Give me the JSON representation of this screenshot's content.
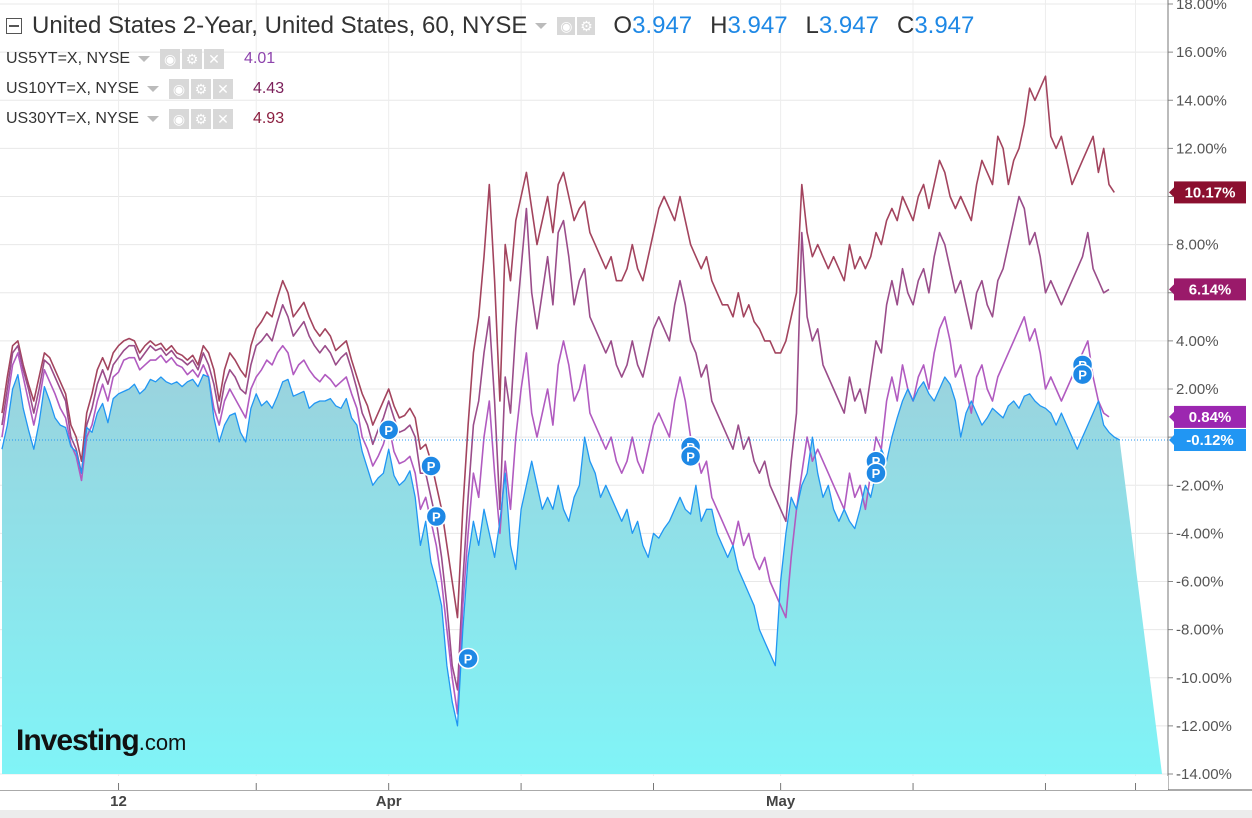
{
  "header": {
    "title": "United States 2-Year, United States, 60, NYSE",
    "ohlc": [
      {
        "label": "O",
        "value": "3.947"
      },
      {
        "label": "H",
        "value": "3.947"
      },
      {
        "label": "L",
        "value": "3.947"
      },
      {
        "label": "C",
        "value": "3.947"
      }
    ]
  },
  "comparisons": [
    {
      "symbol": "US5YT=X, NYSE",
      "value": "4.01",
      "color": "#8e44ad"
    },
    {
      "symbol": "US10YT=X, NYSE",
      "value": "4.43",
      "color": "#7b1f5a"
    },
    {
      "symbol": "US30YT=X, NYSE",
      "value": "4.93",
      "color": "#8b1e3f"
    }
  ],
  "watermark": {
    "brand": "Investing",
    "suffix": ".com"
  },
  "colors": {
    "main_line": "#2196f3",
    "area_top": "#9ad3de",
    "area_bottom": "#80f4f7",
    "us5": "#b15bc0",
    "us10": "#9a4d8a",
    "us30": "#a3445e",
    "badge_blue": "#1e88e5"
  },
  "chart_data": {
    "type": "line",
    "y_axis": {
      "ticks": [
        "18.00%",
        "16.00%",
        "14.00%",
        "12.00%",
        "10.00%",
        "8.00%",
        "6.00%",
        "4.00%",
        "2.00%",
        "0.00%",
        "-2.00%",
        "-4.00%",
        "-6.00%",
        "-8.00%",
        "-10.00%",
        "-12.00%",
        "-14.00%"
      ],
      "ylim": [
        -14,
        18
      ],
      "unit": "%"
    },
    "x_axis": {
      "labels": [
        "12",
        "Apr",
        "May"
      ],
      "label_x_index": [
        22,
        73,
        147
      ],
      "points": 220
    },
    "series": [
      {
        "name": "United States 2-Year",
        "color": "#2196f3",
        "last_label": "-0.12%",
        "y": [
          -0.5,
          0.5,
          2.0,
          2.6,
          1.2,
          0.3,
          -0.5,
          0.6,
          2.1,
          1.5,
          0.8,
          0.5,
          0.4,
          -0.4,
          -0.6,
          -1.5,
          0.4,
          0.2,
          1.0,
          1.4,
          0.6,
          1.6,
          1.8,
          1.9,
          2.0,
          2.2,
          1.8,
          2.0,
          2.4,
          2.3,
          2.5,
          2.3,
          2.2,
          2.3,
          2.1,
          2.3,
          2.4,
          2.1,
          2.6,
          2.5,
          0.8,
          -0.2,
          0.5,
          0.9,
          1.0,
          0.2,
          -0.2,
          1.2,
          1.8,
          1.3,
          1.5,
          1.2,
          1.7,
          2.3,
          2.4,
          1.7,
          1.8,
          1.9,
          1.2,
          1.4,
          1.5,
          1.5,
          1.6,
          1.3,
          1.2,
          1.6,
          0.8,
          0.5,
          -0.6,
          -1.3,
          -2.0,
          -1.7,
          -1.5,
          -0.5,
          -1.6,
          -2.0,
          -1.8,
          -1.4,
          -2.5,
          -4.5,
          -3.5,
          -5.2,
          -6.0,
          -7.0,
          -9.5,
          -11.0,
          -12.0,
          -8.0,
          -5.0,
          -3.5,
          -4.5,
          -3.0,
          -4.0,
          -5.0,
          -3.5,
          -1.5,
          -4.5,
          -5.5,
          -3.0,
          -2.0,
          -1.0,
          -2.0,
          -3.0,
          -2.5,
          -3.0,
          -2.0,
          -3.0,
          -3.5,
          -2.5,
          -2.0,
          0.0,
          -1.0,
          -1.5,
          -2.5,
          -2.0,
          -2.5,
          -3.0,
          -3.5,
          -3.0,
          -4.0,
          -3.5,
          -4.5,
          -5.0,
          -4.0,
          -4.2,
          -3.8,
          -3.5,
          -3.0,
          -2.5,
          -3.0,
          -3.2,
          -2.0,
          -3.5,
          -3.0,
          -3.0,
          -4.0,
          -4.5,
          -5.0,
          -4.5,
          -5.5,
          -6.0,
          -6.5,
          -7.0,
          -8.0,
          -8.5,
          -9.0,
          -9.5,
          -6.0,
          -4.0,
          -2.5,
          -3.0,
          -2.0,
          -1.5,
          0.0,
          -1.5,
          -2.5,
          -2.0,
          -3.0,
          -3.5,
          -3.0,
          -3.5,
          -3.8,
          -3.0,
          -2.0,
          -2.5,
          -1.5,
          -0.5,
          -1.0,
          0.0,
          0.8,
          1.5,
          2.0,
          1.5,
          2.0,
          2.3,
          1.8,
          1.5,
          2.0,
          2.5,
          2.2,
          1.5,
          0.0,
          1.0,
          1.5,
          1.0,
          0.5,
          0.8,
          1.2,
          1.0,
          0.8,
          1.3,
          1.5,
          1.2,
          1.7,
          1.8,
          1.5,
          1.3,
          1.2,
          1.0,
          0.5,
          1.0,
          0.5,
          0.0,
          -0.5,
          0.0,
          0.5,
          1.0,
          1.5,
          0.5,
          0.2,
          0.0,
          -0.12
        ]
      },
      {
        "name": "US5YT=X",
        "color": "#b15bc0",
        "last_label": "0.84%",
        "y": [
          0.0,
          1.5,
          3.0,
          3.5,
          2.5,
          1.5,
          0.5,
          1.5,
          2.8,
          2.3,
          1.8,
          1.2,
          0.8,
          -0.3,
          -0.8,
          -1.8,
          0.0,
          0.5,
          1.5,
          2.2,
          1.5,
          2.5,
          2.7,
          3.2,
          3.3,
          3.3,
          2.8,
          3.0,
          3.2,
          3.2,
          3.4,
          3.1,
          3.3,
          3.0,
          2.9,
          2.6,
          2.8,
          2.5,
          3.0,
          2.5,
          1.2,
          0.5,
          1.5,
          2.0,
          1.6,
          1.2,
          0.8,
          2.0,
          2.5,
          2.8,
          3.2,
          3.0,
          3.5,
          3.8,
          3.5,
          2.6,
          3.0,
          3.2,
          2.8,
          2.5,
          2.3,
          2.6,
          2.4,
          2.1,
          2.3,
          2.5,
          1.8,
          1.2,
          0.0,
          -0.5,
          -1.2,
          -0.8,
          -0.3,
          0.5,
          -0.6,
          -1.1,
          -1.0,
          -0.8,
          -1.5,
          -3.0,
          -2.5,
          -3.5,
          -4.5,
          -6.0,
          -8.0,
          -10.0,
          -11.5,
          -7.0,
          -4.0,
          -1.5,
          -2.5,
          0.0,
          1.5,
          -1.5,
          -4.0,
          -1.0,
          -3.0,
          0.0,
          2.0,
          3.5,
          1.0,
          0.0,
          1.0,
          2.0,
          0.5,
          3.0,
          4.0,
          3.0,
          1.5,
          2.0,
          3.0,
          1.0,
          0.5,
          0.0,
          -0.5,
          0.0,
          -1.0,
          -1.5,
          -1.0,
          0.0,
          -1.0,
          -1.5,
          -0.5,
          0.5,
          1.0,
          0.5,
          0.0,
          1.5,
          2.5,
          1.5,
          0.0,
          -0.5,
          -1.5,
          -1.0,
          -2.5,
          -3.0,
          -3.5,
          -4.0,
          -4.5,
          -3.5,
          -4.5,
          -4.0,
          -5.0,
          -5.5,
          -5.0,
          -6.0,
          -6.5,
          -7.0,
          -7.5,
          -5.0,
          -3.0,
          -1.5,
          0.0,
          -1.0,
          -0.5,
          -1.0,
          -1.5,
          -2.0,
          -2.5,
          -3.0,
          -1.5,
          -2.5,
          -2.0,
          -3.0,
          -1.5,
          0.0,
          -0.5,
          1.5,
          2.5,
          1.5,
          3.0,
          2.0,
          1.5,
          2.5,
          3.0,
          2.0,
          3.5,
          4.5,
          5.0,
          4.0,
          2.5,
          3.0,
          2.0,
          1.0,
          2.5,
          3.0,
          2.0,
          1.5,
          2.5,
          3.0,
          3.5,
          4.0,
          4.5,
          5.0,
          4.0,
          4.5,
          3.5,
          2.0,
          2.5,
          2.0,
          1.5,
          2.0,
          2.5,
          3.0,
          3.5,
          4.0,
          2.5,
          1.5,
          1.0,
          0.84
        ]
      },
      {
        "name": "US10YT=X",
        "color": "#9a4d8a",
        "last_label": "6.14%",
        "y": [
          0.5,
          2.0,
          3.5,
          3.8,
          2.8,
          2.0,
          1.0,
          2.0,
          3.2,
          3.0,
          2.5,
          2.0,
          1.5,
          0.0,
          -0.5,
          -1.5,
          0.5,
          1.2,
          2.2,
          2.8,
          2.2,
          3.0,
          3.3,
          3.6,
          3.8,
          3.8,
          3.2,
          3.5,
          3.8,
          3.6,
          3.7,
          3.4,
          3.6,
          3.3,
          3.2,
          3.0,
          3.2,
          2.8,
          3.5,
          3.0,
          2.2,
          1.0,
          2.2,
          2.8,
          2.5,
          2.0,
          1.8,
          3.0,
          3.8,
          4.0,
          4.3,
          4.0,
          4.8,
          5.5,
          5.0,
          4.2,
          4.5,
          4.8,
          4.2,
          3.8,
          3.5,
          3.8,
          3.5,
          3.0,
          3.3,
          3.5,
          2.8,
          2.0,
          1.0,
          0.5,
          -0.3,
          0.3,
          0.8,
          1.5,
          0.8,
          0.2,
          0.3,
          0.5,
          0.0,
          -1.5,
          -1.5,
          -2.5,
          -3.5,
          -5.0,
          -7.0,
          -9.5,
          -10.5,
          -6.0,
          -2.5,
          0.5,
          1.5,
          3.5,
          5.0,
          1.5,
          -3.0,
          2.5,
          1.0,
          4.5,
          7.0,
          9.5,
          6.0,
          4.5,
          6.0,
          7.5,
          5.5,
          8.5,
          9.0,
          7.5,
          5.5,
          6.5,
          7.0,
          5.0,
          4.5,
          4.0,
          3.5,
          4.0,
          3.0,
          2.5,
          3.0,
          4.0,
          3.0,
          2.5,
          3.5,
          4.5,
          5.0,
          4.5,
          4.0,
          5.5,
          6.5,
          5.5,
          4.0,
          3.5,
          2.5,
          3.0,
          1.5,
          1.0,
          0.5,
          0.0,
          -0.5,
          0.5,
          -0.5,
          0.0,
          -1.0,
          -1.5,
          -1.0,
          -2.0,
          -2.5,
          -3.0,
          -3.5,
          -1.0,
          1.0,
          8.5,
          5.0,
          4.0,
          4.5,
          3.0,
          2.5,
          2.0,
          1.5,
          1.0,
          2.5,
          1.5,
          2.0,
          1.0,
          2.5,
          4.0,
          3.5,
          5.5,
          6.5,
          5.5,
          7.0,
          6.0,
          5.5,
          6.5,
          7.0,
          6.0,
          7.5,
          8.5,
          8.0,
          7.0,
          6.0,
          6.5,
          5.5,
          4.5,
          6.0,
          6.5,
          5.5,
          5.0,
          6.5,
          7.0,
          8.0,
          9.0,
          10.0,
          9.5,
          8.0,
          8.5,
          7.5,
          6.0,
          6.5,
          6.0,
          5.5,
          6.0,
          6.5,
          7.0,
          7.5,
          8.5,
          7.0,
          6.5,
          6.0,
          6.14
        ]
      },
      {
        "name": "US30YT=X",
        "color": "#a3445e",
        "last_label": "10.17%",
        "y": [
          1.0,
          2.5,
          3.8,
          4.0,
          3.0,
          2.2,
          1.5,
          2.5,
          3.5,
          3.3,
          2.8,
          2.3,
          1.8,
          0.5,
          0.0,
          -1.0,
          1.0,
          1.8,
          2.8,
          3.3,
          2.8,
          3.5,
          3.8,
          4.0,
          4.1,
          4.0,
          3.5,
          3.8,
          4.0,
          3.8,
          3.9,
          3.6,
          3.8,
          3.5,
          3.4,
          3.2,
          3.4,
          3.0,
          3.8,
          3.5,
          2.8,
          1.5,
          2.8,
          3.5,
          3.2,
          2.8,
          2.5,
          3.8,
          4.5,
          4.8,
          5.2,
          5.0,
          5.8,
          6.5,
          6.0,
          5.0,
          5.3,
          5.6,
          5.0,
          4.5,
          4.2,
          4.5,
          4.2,
          3.6,
          3.8,
          4.0,
          3.2,
          2.5,
          1.8,
          1.3,
          0.5,
          1.0,
          1.5,
          2.0,
          1.3,
          0.8,
          0.9,
          1.2,
          0.8,
          -0.5,
          -0.3,
          -1.0,
          -2.0,
          -3.0,
          -4.5,
          -6.0,
          -7.5,
          -3.0,
          0.5,
          3.5,
          5.0,
          7.5,
          10.5,
          6.5,
          1.5,
          8.0,
          6.5,
          9.0,
          10.0,
          11.0,
          9.5,
          8.0,
          9.0,
          10.0,
          8.5,
          10.5,
          11.0,
          10.0,
          9.0,
          9.5,
          9.8,
          8.5,
          8.0,
          7.5,
          7.0,
          7.5,
          6.5,
          6.5,
          7.0,
          8.0,
          7.0,
          6.5,
          7.5,
          8.5,
          9.5,
          10.0,
          9.5,
          9.0,
          10.0,
          9.0,
          8.0,
          7.5,
          7.0,
          7.5,
          6.5,
          6.0,
          5.5,
          5.5,
          5.0,
          6.0,
          5.0,
          5.5,
          4.8,
          4.5,
          4.0,
          4.0,
          3.5,
          3.5,
          4.0,
          5.0,
          6.0,
          10.5,
          8.5,
          7.5,
          8.0,
          7.5,
          7.0,
          7.5,
          7.0,
          6.5,
          8.0,
          7.0,
          7.5,
          7.0,
          7.5,
          8.5,
          8.0,
          9.0,
          9.5,
          9.0,
          10.0,
          9.5,
          9.0,
          10.0,
          10.5,
          9.5,
          10.5,
          11.5,
          11.0,
          10.0,
          9.5,
          10.0,
          9.5,
          9.0,
          10.5,
          11.5,
          11.0,
          10.5,
          12.5,
          12.0,
          10.5,
          11.5,
          12.0,
          13.0,
          14.5,
          14.0,
          14.5,
          15.0,
          12.5,
          12.0,
          12.5,
          11.5,
          10.5,
          11.0,
          11.5,
          12.0,
          12.5,
          11.0,
          12.0,
          10.5,
          10.17
        ]
      }
    ],
    "markers": [
      {
        "label": "P",
        "i": 73,
        "y": 0.3
      },
      {
        "label": "P",
        "i": 81,
        "y": -1.2
      },
      {
        "label": "P",
        "i": 82,
        "y": -3.3
      },
      {
        "label": "P",
        "i": 88,
        "y": -9.2
      },
      {
        "label": "P",
        "i": 130,
        "y": -0.4
      },
      {
        "label": "P",
        "i": 130,
        "y": -0.8
      },
      {
        "label": "P",
        "i": 165,
        "y": -1.0
      },
      {
        "label": "P",
        "i": 165,
        "y": -1.5
      },
      {
        "label": "P",
        "i": 204,
        "y": 3.0
      },
      {
        "label": "P",
        "i": 204,
        "y": 2.6
      }
    ]
  }
}
